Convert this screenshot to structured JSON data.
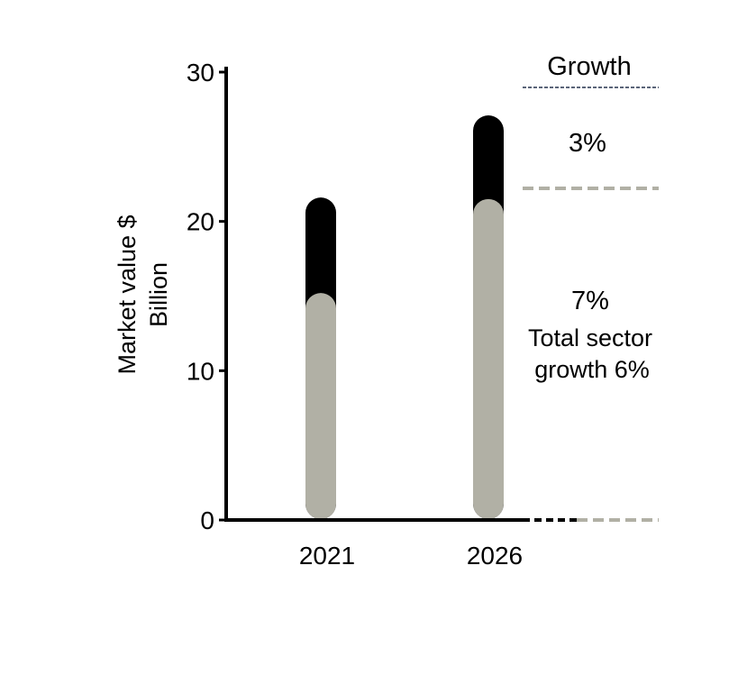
{
  "chart_data": {
    "type": "bar",
    "stacked": true,
    "categories": [
      "2021",
      "2026"
    ],
    "series": [
      {
        "values": [
          15.2,
          21.5
        ],
        "color": "#b1b0a5"
      },
      {
        "values": [
          6.4,
          5.6
        ],
        "color": "#000000"
      }
    ],
    "ylabel": [
      "Market value $",
      "Billion"
    ],
    "ylim": [
      0,
      30
    ],
    "yticks": [
      0,
      10,
      20,
      30
    ],
    "annotations": {
      "header": "Growth",
      "top_growth": "3%",
      "bottom_growth": "7%",
      "total_lines": [
        "Total sector",
        "growth 6%"
      ]
    },
    "grid": false,
    "colors": {
      "axis": "#000000",
      "header_rule": "#5a6478",
      "divider": "#b1b0a5"
    }
  }
}
